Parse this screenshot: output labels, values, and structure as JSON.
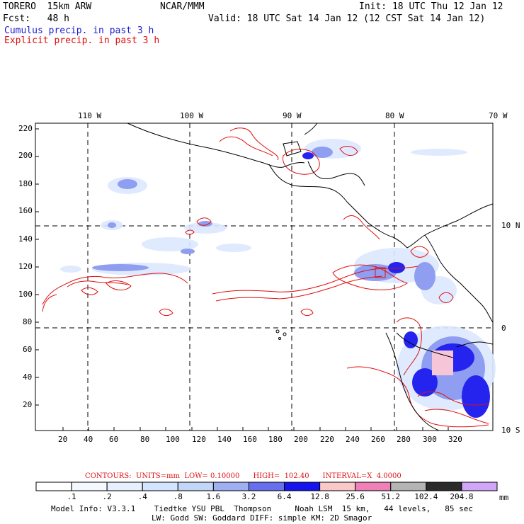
{
  "header": {
    "model": "TORERO  15km ARW",
    "org": "NCAR/MMM",
    "init": "Init: 18 UTC Thu 12 Jan 12",
    "fcst": "Fcst:   48 h",
    "valid": "Valid: 18 UTC Sat 14 Jan 12 (12 CST Sat 14 Jan 12)",
    "legend_cumulus": "Cumulus precip. in past 3 h",
    "legend_explicit": "Explicit precip. in past 3 h"
  },
  "map": {
    "top_lon_labels": [
      "110 W",
      "100 W",
      "90 W",
      "80 W",
      "70 W"
    ],
    "right_lat_labels": [
      "10 N",
      "0",
      "10 S"
    ],
    "left_ticks": [
      "220",
      "200",
      "180",
      "160",
      "140",
      "120",
      "100",
      "80",
      "60",
      "40",
      "20"
    ],
    "bottom_ticks": [
      "20",
      "40",
      "60",
      "80",
      "100",
      "120",
      "140",
      "160",
      "180",
      "200",
      "220",
      "240",
      "260",
      "280",
      "300",
      "320"
    ]
  },
  "contours_info": "CONTOURS:  UNITS=mm  LOW= 0.10000      HIGH=  102.40      INTERVAL=X  4.0000",
  "colorbar": {
    "labels": [
      ".1",
      ".2",
      ".4",
      ".8",
      "1.6",
      "3.2",
      "6.4",
      "12.8",
      "25.6",
      "51.2",
      "102.4",
      "204.8"
    ],
    "unit": "mm",
    "colors": [
      "#ffffff",
      "#f4f8ff",
      "#e6f0ff",
      "#d4e6ff",
      "#c2d6f8",
      "#9fb0f2",
      "#6670ee",
      "#1414ee",
      "#fac8c8",
      "#f080b8",
      "#b4b4b4",
      "#2a2a2a",
      "#d2a6f6"
    ]
  },
  "footer": {
    "line1": "Model Info: V3.3.1    Tiedtke YSU PBL  Thompson     Noah LSM  15 km,   44 levels,   85 sec",
    "line2": "LW: Godd SW: Goddard DIFF: simple KM: 2D Smagor"
  }
}
